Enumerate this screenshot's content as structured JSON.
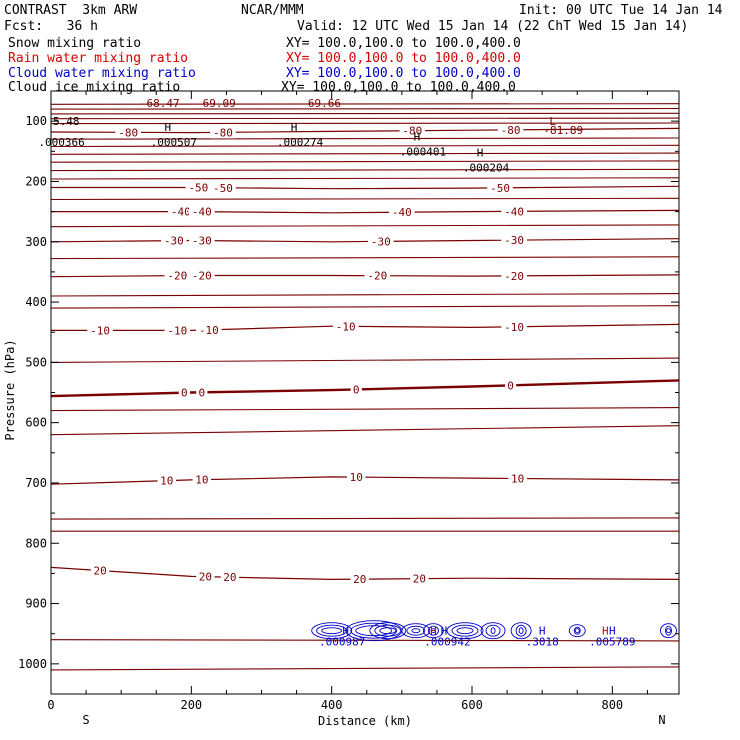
{
  "header": {
    "model": "CONTRAST  3km ARW",
    "org": "NCAR/MMM",
    "init": "Init: 00 UTC Tue 14 Jan 14",
    "fcst": "Fcst:   36 h",
    "valid": "Valid: 12 UTC Wed 15 Jan 14 (22 ChT Wed 15 Jan 14)"
  },
  "fields": [
    {
      "name": "Snow mixing ratio",
      "xy": "XY= 100.0,100.0 to 100.0,400.0",
      "color": "#000000"
    },
    {
      "name": "Rain water mixing ratio",
      "xy": "XY= 100.0,100.0 to 100.0,400.0",
      "color": "#d40000"
    },
    {
      "name": "Cloud water mixing ratio",
      "xy": "XY= 100.0,100.0 to 100.0,400.0",
      "color": "#0000c8"
    },
    {
      "name": "Cloud ice mixing ratio",
      "xy": "XY= 100.0,100.0 to 100.0,400.0",
      "color": "#000000"
    }
  ],
  "colors": {
    "temperature_contour": "#7a0000",
    "rain": "#d40000",
    "cloud_water": "#0000c8",
    "axis": "#000000"
  },
  "chart_data": {
    "type": "contour",
    "title": "",
    "xlabel": "Distance (km)",
    "ylabel": "Pressure (hPa)",
    "xlim": [
      0,
      895
    ],
    "ylim": [
      1050,
      50
    ],
    "x_ticks": [
      0,
      200,
      400,
      600,
      800
    ],
    "y_ticks": [
      100,
      200,
      300,
      400,
      500,
      600,
      700,
      800,
      900,
      1000
    ],
    "x_end_labels": {
      "left": "S",
      "right": "N"
    },
    "temperature_contours": [
      {
        "value": 0,
        "points": [
          [
            0,
            556
          ],
          [
            200,
            550
          ],
          [
            400,
            546
          ],
          [
            600,
            540
          ],
          [
            895,
            530
          ]
        ],
        "labels": [
          {
            "text": "0",
            "x": 190
          },
          {
            "text": "0",
            "x": 215
          },
          {
            "text": "0",
            "x": 435
          },
          {
            "text": "0",
            "x": 655
          }
        ]
      },
      {
        "value": -10,
        "points": [
          [
            0,
            447
          ],
          [
            200,
            447
          ],
          [
            400,
            440
          ],
          [
            600,
            442
          ],
          [
            895,
            437
          ]
        ],
        "labels": [
          {
            "text": "-10",
            "x": 70
          },
          {
            "text": "-10",
            "x": 180
          },
          {
            "text": "-10",
            "x": 225
          },
          {
            "text": "-10",
            "x": 420
          },
          {
            "text": "-10",
            "x": 660
          }
        ]
      },
      {
        "value": -20,
        "points": [
          [
            0,
            358
          ],
          [
            200,
            356
          ],
          [
            400,
            356
          ],
          [
            600,
            357
          ],
          [
            895,
            355
          ]
        ],
        "labels": [
          {
            "text": "-20",
            "x": 180
          },
          {
            "text": "-20",
            "x": 215
          },
          {
            "text": "-20",
            "x": 465
          },
          {
            "text": "-20",
            "x": 660
          }
        ]
      },
      {
        "value": -30,
        "points": [
          [
            0,
            300
          ],
          [
            200,
            298
          ],
          [
            400,
            300
          ],
          [
            600,
            298
          ],
          [
            895,
            295
          ]
        ],
        "labels": [
          {
            "text": "-30",
            "x": 175
          },
          {
            "text": "-30",
            "x": 215
          },
          {
            "text": "-30",
            "x": 470
          },
          {
            "text": "-30",
            "x": 660
          }
        ]
      },
      {
        "value": -40,
        "points": [
          [
            0,
            250
          ],
          [
            200,
            250
          ],
          [
            400,
            252
          ],
          [
            600,
            250
          ],
          [
            895,
            248
          ]
        ],
        "labels": [
          {
            "text": "-40",
            "x": 185
          },
          {
            "text": "-40",
            "x": 215
          },
          {
            "text": "-40",
            "x": 500
          },
          {
            "text": "-40",
            "x": 660
          }
        ]
      },
      {
        "value": -50,
        "points": [
          [
            0,
            210
          ],
          [
            200,
            210
          ],
          [
            400,
            212
          ],
          [
            600,
            211
          ],
          [
            895,
            208
          ]
        ],
        "labels": [
          {
            "text": "-50",
            "x": 210
          },
          {
            "text": "-50",
            "x": 245
          },
          {
            "text": "-50",
            "x": 640
          }
        ]
      },
      {
        "value": -80,
        "points": [
          [
            0,
            118
          ],
          [
            200,
            119
          ],
          [
            400,
            117
          ],
          [
            600,
            115
          ],
          [
            895,
            112
          ]
        ],
        "labels": [
          {
            "text": "-80",
            "x": 110
          },
          {
            "text": "-80",
            "x": 245
          },
          {
            "text": "-80",
            "x": 515
          },
          {
            "text": "-80",
            "x": 655
          }
        ]
      },
      {
        "value": 10,
        "points": [
          [
            0,
            702
          ],
          [
            200,
            695
          ],
          [
            400,
            690
          ],
          [
            600,
            692
          ],
          [
            895,
            695
          ]
        ],
        "labels": [
          {
            "text": "10",
            "x": 165
          },
          {
            "text": "10",
            "x": 215
          },
          {
            "text": "10",
            "x": 435
          },
          {
            "text": "10",
            "x": 665
          }
        ]
      },
      {
        "value": 20,
        "points": [
          [
            0,
            840
          ],
          [
            200,
            855
          ],
          [
            400,
            860
          ],
          [
            600,
            858
          ],
          [
            895,
            860
          ]
        ],
        "labels": [
          {
            "text": "20",
            "x": 70
          },
          {
            "text": "20",
            "x": 220
          },
          {
            "text": "20",
            "x": 255
          },
          {
            "text": "20",
            "x": 440
          },
          {
            "text": "20",
            "x": 525
          }
        ]
      }
    ],
    "temperature_levels_unlabeled": [
      [
        [
          0,
          72
        ],
        [
          895,
          71
        ]
      ],
      [
        [
          0,
          80
        ],
        [
          895,
          79
        ]
      ],
      [
        [
          0,
          88
        ],
        [
          895,
          87
        ]
      ],
      [
        [
          0,
          96
        ],
        [
          895,
          95
        ]
      ],
      [
        [
          0,
          104
        ],
        [
          895,
          103
        ]
      ],
      [
        [
          0,
          130
        ],
        [
          895,
          128
        ]
      ],
      [
        [
          0,
          142
        ],
        [
          895,
          140
        ]
      ],
      [
        [
          0,
          155
        ],
        [
          895,
          153
        ]
      ],
      [
        [
          0,
          168
        ],
        [
          895,
          166
        ]
      ],
      [
        [
          0,
          182
        ],
        [
          895,
          180
        ]
      ],
      [
        [
          0,
          196
        ],
        [
          895,
          194
        ]
      ],
      [
        [
          0,
          230
        ],
        [
          895,
          228
        ]
      ],
      [
        [
          0,
          275
        ],
        [
          895,
          272
        ]
      ],
      [
        [
          0,
          328
        ],
        [
          895,
          325
        ]
      ],
      [
        [
          0,
          390
        ],
        [
          895,
          386
        ]
      ],
      [
        [
          0,
          410
        ],
        [
          895,
          406
        ]
      ],
      [
        [
          0,
          500
        ],
        [
          895,
          493
        ]
      ],
      [
        [
          0,
          580
        ],
        [
          895,
          575
        ]
      ],
      [
        [
          0,
          620
        ],
        [
          895,
          605
        ]
      ],
      [
        [
          0,
          760
        ],
        [
          895,
          758
        ]
      ],
      [
        [
          0,
          780
        ],
        [
          895,
          780
        ]
      ],
      [
        [
          0,
          960
        ],
        [
          895,
          962
        ]
      ],
      [
        [
          0,
          1010
        ],
        [
          895,
          1005
        ]
      ]
    ],
    "min_labels": [
      {
        "text": "-68.47",
        "x": 155,
        "p": 70
      },
      {
        "text": "-69.09",
        "x": 235,
        "p": 70
      },
      {
        "text": "-69.66",
        "x": 385,
        "p": 70
      },
      {
        "text": "-81.89",
        "x": 730,
        "p": 115
      },
      {
        "text": "L",
        "x": 715,
        "p": 100
      }
    ],
    "snow_maxima": [
      {
        "text": ".000366",
        "x": 15,
        "p": 125,
        "h": false
      },
      {
        "text": ".000507",
        "x": 175,
        "p": 125,
        "h": true
      },
      {
        "text": ".000274",
        "x": 355,
        "p": 125,
        "h": true
      },
      {
        "text": ".000401",
        "x": 530,
        "p": 140,
        "h": true
      },
      {
        "text": ".000204",
        "x": 620,
        "p": 167,
        "h": true
      }
    ],
    "top_left_label": {
      "text": "5.48",
      "p": 100
    },
    "rain_maxima": [
      {
        "text": "H",
        "x": 545,
        "p": 945
      },
      {
        "text": "H",
        "x": 790,
        "p": 945
      }
    ],
    "cloud_water_maxima": [
      {
        "text": "H",
        "x": 420,
        "p": 945
      },
      {
        "text": ".000987",
        "x": 415,
        "p": 963
      },
      {
        "text": "H",
        "x": 560,
        "p": 945
      },
      {
        "text": ".000942",
        "x": 565,
        "p": 963
      },
      {
        "text": "H",
        "x": 700,
        "p": 945
      },
      {
        "text": ".3018",
        "x": 700,
        "p": 963
      },
      {
        "text": "H",
        "x": 800,
        "p": 945
      },
      {
        "text": ".005789",
        "x": 800,
        "p": 963
      }
    ]
  }
}
